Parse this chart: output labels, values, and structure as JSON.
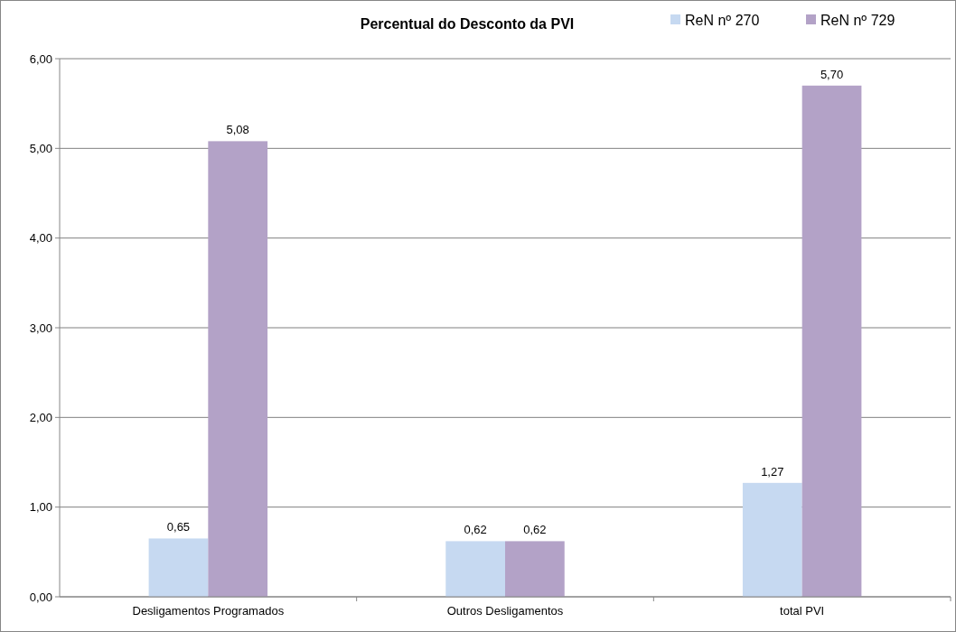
{
  "chart_data": {
    "type": "bar",
    "title": "Percentual do Desconto da PVI",
    "categories": [
      "Desligamentos Programados",
      "Outros Desligamentos",
      "total PVI"
    ],
    "series": [
      {
        "name": "ReN nº 270",
        "color": "#c6d9f1",
        "values": [
          0.65,
          0.62,
          1.27
        ],
        "value_labels": [
          "0,65",
          "0,62",
          "1,27"
        ]
      },
      {
        "name": "ReN nº 729",
        "color": "#b3a2c7",
        "values": [
          5.08,
          0.62,
          5.7
        ],
        "value_labels": [
          "5,08",
          "0,62",
          "5,70"
        ]
      }
    ],
    "ylim": [
      0,
      6
    ],
    "yticks": [
      {
        "value": 0,
        "label": "0,00"
      },
      {
        "value": 1,
        "label": "1,00"
      },
      {
        "value": 2,
        "label": "2,00"
      },
      {
        "value": 3,
        "label": "3,00"
      },
      {
        "value": 4,
        "label": "4,00"
      },
      {
        "value": 5,
        "label": "5,00"
      },
      {
        "value": 6,
        "label": "6,00"
      }
    ],
    "grid": "y",
    "legend": "top right"
  }
}
